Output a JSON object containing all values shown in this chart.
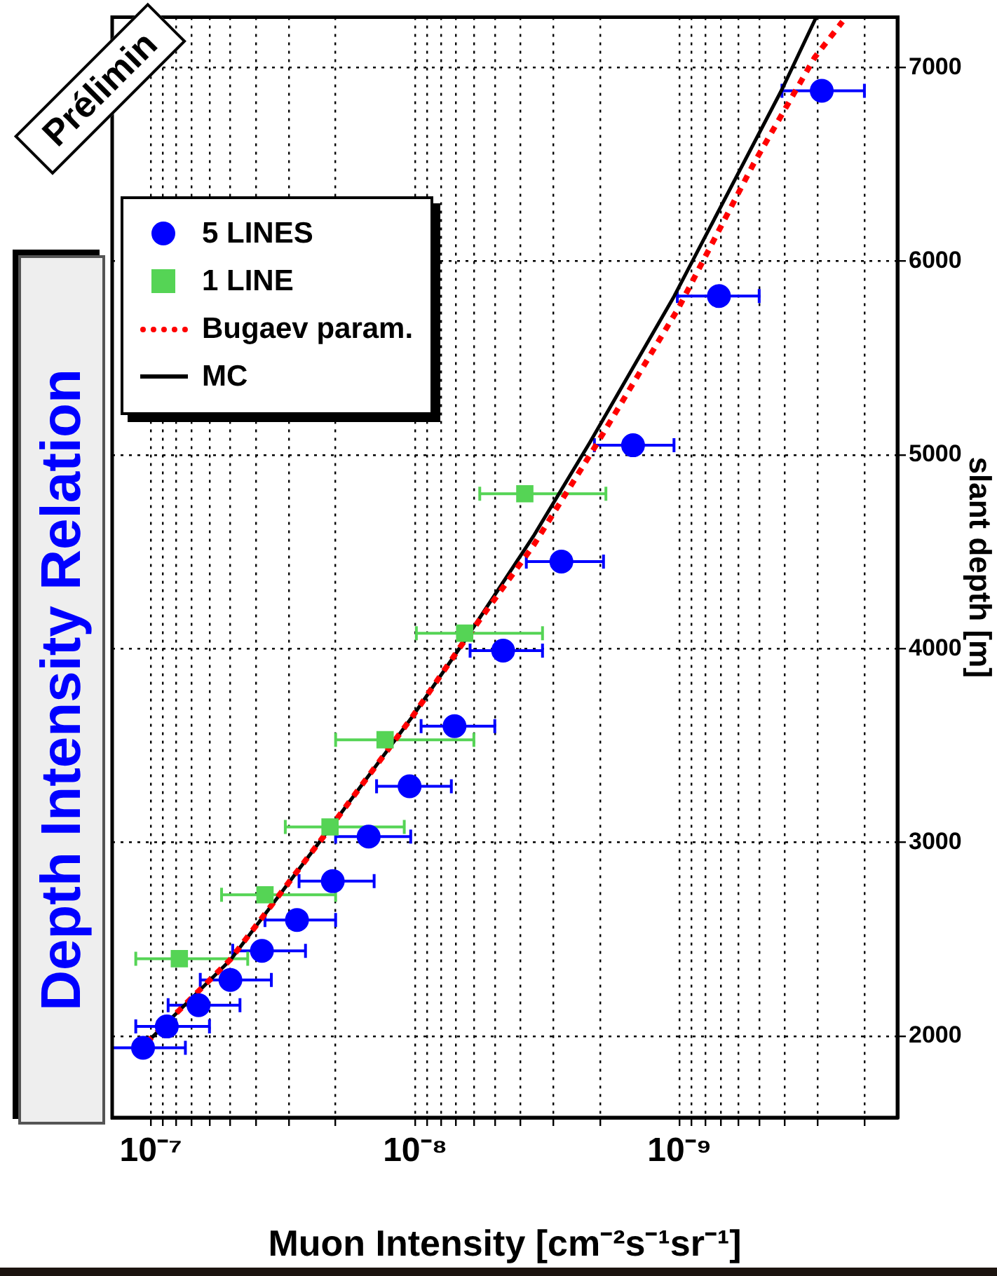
{
  "chart_data": {
    "type": "scatter",
    "title": "Depth Intensity Relation",
    "xlabel": "Muon Intensity [cm⁻²s⁻¹sr⁻¹]",
    "ylabel": "slant depth [m]",
    "annotations": [
      "Prélimin"
    ],
    "log": "x",
    "grid": true,
    "legend": "top left",
    "ylim": [
      1580,
      7260
    ],
    "yticks": [
      2000,
      3000,
      4000,
      5000,
      6000,
      7000
    ],
    "xlim": [
      1.4e-07,
      1.5e-10
    ],
    "xticks": [
      {
        "value": 2e-10,
        "label": null
      },
      {
        "value": 3e-10,
        "label": null
      },
      {
        "value": 4e-10,
        "label": null
      },
      {
        "value": 5e-10,
        "label": null
      },
      {
        "value": 6e-10,
        "label": null
      },
      {
        "value": 7e-10,
        "label": null
      },
      {
        "value": 8e-10,
        "label": null
      },
      {
        "value": 9e-10,
        "label": null
      },
      {
        "value": 1e-09,
        "label": "10⁻⁹"
      },
      {
        "value": 2e-09,
        "label": null
      },
      {
        "value": 3e-09,
        "label": null
      },
      {
        "value": 4e-09,
        "label": null
      },
      {
        "value": 5e-09,
        "label": null
      },
      {
        "value": 6e-09,
        "label": null
      },
      {
        "value": 7e-09,
        "label": null
      },
      {
        "value": 8e-09,
        "label": null
      },
      {
        "value": 9e-09,
        "label": null
      },
      {
        "value": 1e-08,
        "label": "10⁻⁸"
      },
      {
        "value": 2e-08,
        "label": null
      },
      {
        "value": 3e-08,
        "label": null
      },
      {
        "value": 4e-08,
        "label": null
      },
      {
        "value": 5e-08,
        "label": null
      },
      {
        "value": 6e-08,
        "label": null
      },
      {
        "value": 7e-08,
        "label": null
      },
      {
        "value": 8e-08,
        "label": null
      },
      {
        "value": 9e-08,
        "label": null
      },
      {
        "value": 1e-07,
        "label": "10⁻⁷"
      }
    ],
    "series": [
      {
        "name": "5 LINES",
        "marker": "circle",
        "color": "#0000ff",
        "values": [
          1940,
          2050,
          2160,
          2290,
          2440,
          2600,
          2800,
          3030,
          3290,
          3600,
          3990,
          4450,
          5050,
          5820,
          6880
        ],
        "x": [
          1.07e-07,
          8.7e-08,
          6.6e-08,
          5e-08,
          3.8e-08,
          2.8e-08,
          2.05e-08,
          1.5e-08,
          1.05e-08,
          7.1e-09,
          4.65e-09,
          2.8e-09,
          1.5e-09,
          7.1e-10,
          2.9e-10
        ],
        "xerrors": [
          [
            7.4e-08,
            1.4e-07
          ],
          [
            6e-08,
            1.14e-07
          ],
          [
            4.6e-08,
            8.6e-08
          ],
          [
            3.5e-08,
            6.5e-08
          ],
          [
            2.6e-08,
            4.9e-08
          ],
          [
            2e-08,
            3.7e-08
          ],
          [
            1.43e-08,
            2.75e-08
          ],
          [
            1.04e-08,
            2e-08
          ],
          [
            7.3e-09,
            1.4e-08
          ],
          [
            5e-09,
            9.5e-09
          ],
          [
            3.3e-09,
            6.2e-09
          ],
          [
            1.94e-09,
            3.8e-09
          ],
          [
            1.05e-09,
            2.1e-09
          ],
          [
            5e-10,
            1.02e-09
          ],
          [
            2e-10,
            4.1e-10
          ]
        ]
      },
      {
        "name": "1 LINE",
        "marker": "square",
        "color": "#55d455",
        "values": [
          2400,
          2730,
          3080,
          3530,
          4080,
          4800
        ],
        "x": [
          7.8e-08,
          3.7e-08,
          2.1e-08,
          1.3e-08,
          6.5e-09,
          3.85e-09
        ],
        "xerrors": [
          [
            4.3e-08,
            1.14e-07
          ],
          [
            2e-08,
            5.4e-08
          ],
          [
            1.1e-08,
            3.1e-08
          ],
          [
            6e-09,
            2e-08
          ],
          [
            3.3e-09,
            9.9e-09
          ],
          [
            1.9e-09,
            5.7e-09
          ]
        ]
      },
      {
        "name": "Bugaev param.",
        "type": "line",
        "line_style": "dotted",
        "color": "#ff0000",
        "values": [
          1916,
          2396,
          3056,
          3645,
          4029,
          4533,
          5037,
          5758,
          6503,
          7053,
          7237
        ],
        "x": [
          1.13e-07,
          5e-08,
          2.15e-08,
          1.03e-08,
          6.6e-09,
          3.57e-09,
          2.1e-09,
          1.01e-09,
          5.25e-10,
          3.08e-10,
          2.42e-10
        ]
      },
      {
        "name": "MC",
        "type": "line",
        "line_style": "solid",
        "color": "#000000",
        "values": [
          1916,
          2396,
          3056,
          3645,
          4029,
          4581,
          5062,
          5818,
          6887,
          7257
        ],
        "x": [
          1.13e-07,
          4.98e-08,
          2.15e-08,
          1.03e-08,
          6.59e-09,
          3.57e-09,
          2.19e-09,
          1.05e-09,
          4.1e-10,
          3.05e-10
        ]
      }
    ]
  }
}
